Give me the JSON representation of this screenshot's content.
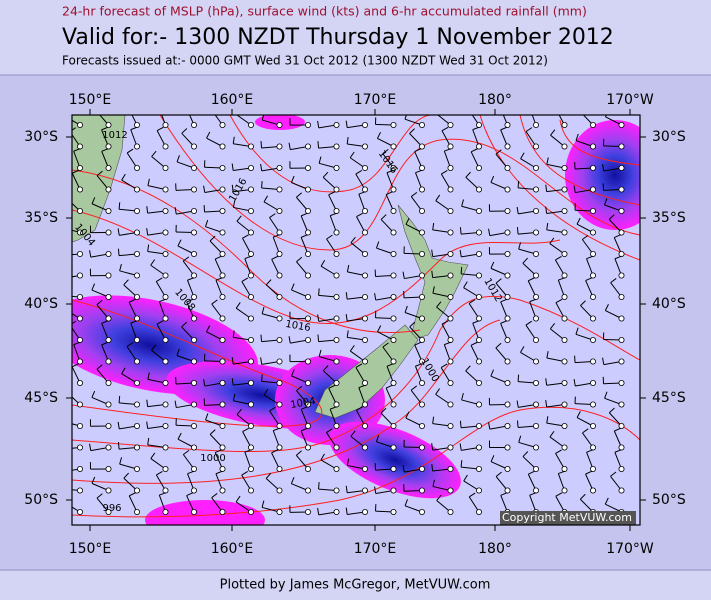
{
  "header": {
    "subtitle": "24-hr forecast of MSLP (hPa), surface wind (kts) and 6-hr accumulated rainfall (mm)",
    "title": "Valid for:- 1300 NZDT Thursday  1 November 2012",
    "issued": "Forecasts issued at:- 0000 GMT Wed 31 Oct 2012 (1300 NZDT Wed 31 Oct 2012)"
  },
  "map": {
    "lon_labels": [
      "150°E",
      "160°E",
      "170°E",
      "180°",
      "170°W"
    ],
    "lat_labels": [
      "30°S",
      "35°S",
      "40°S",
      "45°S",
      "50°S"
    ],
    "isobar_labels": [
      "1012",
      "1016",
      "1016",
      "1004",
      "1008",
      "1016",
      "1012",
      "1000",
      "1004",
      "1000",
      "996"
    ],
    "copyright": "Copyright MetVUW.com"
  },
  "footer": {
    "credit": "Plotted by James McGregor, MetVUW.com"
  }
}
